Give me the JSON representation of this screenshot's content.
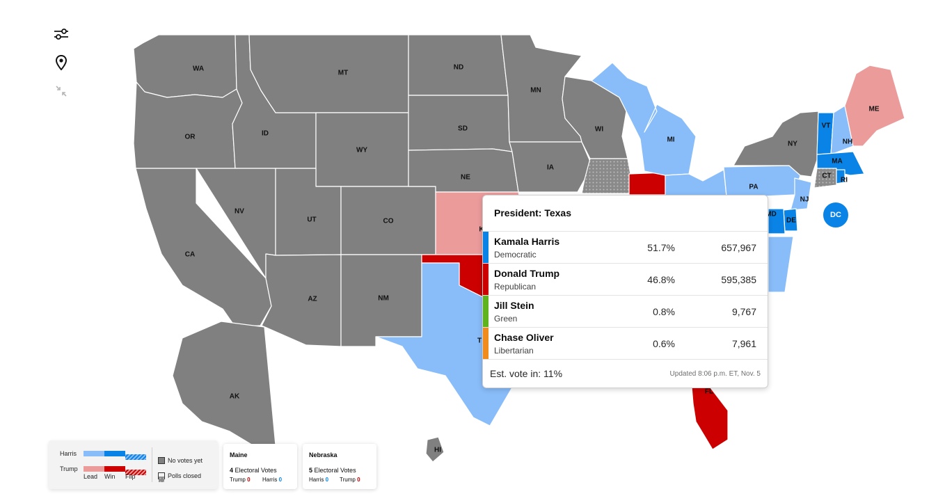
{
  "colors": {
    "no_votes": "#808080",
    "harris_lead": "#89bdf9",
    "harris_win": "#0a83e6",
    "trump_lead": "#ec9b9b",
    "trump_win": "#cc0000",
    "polls_closed": "#9a9a9a"
  },
  "controls": [
    {
      "name": "filter-sliders-icon"
    },
    {
      "name": "location-pin-icon"
    },
    {
      "name": "collapse-arrows-icon"
    }
  ],
  "map": {
    "states": [
      {
        "id": "WA",
        "label": "WA",
        "status": "no_votes"
      },
      {
        "id": "OR",
        "label": "OR",
        "status": "no_votes"
      },
      {
        "id": "CA",
        "label": "CA",
        "status": "no_votes"
      },
      {
        "id": "ID",
        "label": "ID",
        "status": "no_votes"
      },
      {
        "id": "NV",
        "label": "NV",
        "status": "no_votes"
      },
      {
        "id": "MT",
        "label": "MT",
        "status": "no_votes"
      },
      {
        "id": "WY",
        "label": "WY",
        "status": "no_votes"
      },
      {
        "id": "UT",
        "label": "UT",
        "status": "no_votes"
      },
      {
        "id": "AZ",
        "label": "AZ",
        "status": "no_votes"
      },
      {
        "id": "CO",
        "label": "CO",
        "status": "no_votes"
      },
      {
        "id": "NM",
        "label": "NM",
        "status": "no_votes"
      },
      {
        "id": "ND",
        "label": "ND",
        "status": "no_votes"
      },
      {
        "id": "SD",
        "label": "SD",
        "status": "no_votes"
      },
      {
        "id": "NE",
        "label": "NE",
        "status": "no_votes"
      },
      {
        "id": "KS",
        "label": "K",
        "status": "trump_lead"
      },
      {
        "id": "OK",
        "label": "",
        "status": "trump_win"
      },
      {
        "id": "TX",
        "label": "T",
        "status": "harris_lead"
      },
      {
        "id": "MN",
        "label": "MN",
        "status": "no_votes"
      },
      {
        "id": "IA",
        "label": "IA",
        "status": "no_votes"
      },
      {
        "id": "WI",
        "label": "WI",
        "status": "no_votes"
      },
      {
        "id": "IL",
        "label": "",
        "status": "polls_closed"
      },
      {
        "id": "IN",
        "label": "",
        "status": "trump_win"
      },
      {
        "id": "MI",
        "label": "MI",
        "status": "harris_lead"
      },
      {
        "id": "OH",
        "label": "",
        "status": "harris_lead"
      },
      {
        "id": "PA",
        "label": "PA",
        "status": "harris_lead"
      },
      {
        "id": "NY",
        "label": "NY",
        "status": "no_votes"
      },
      {
        "id": "VT",
        "label": "VT",
        "status": "harris_win"
      },
      {
        "id": "NH",
        "label": "NH",
        "status": "harris_lead"
      },
      {
        "id": "ME",
        "label": "ME",
        "status": "trump_lead"
      },
      {
        "id": "MA",
        "label": "MA",
        "status": "harris_win"
      },
      {
        "id": "CT",
        "label": "CT",
        "status": "polls_closed"
      },
      {
        "id": "RI",
        "label": "RI",
        "status": "harris_win"
      },
      {
        "id": "NJ",
        "label": "NJ",
        "status": "harris_lead"
      },
      {
        "id": "DE",
        "label": "DE",
        "status": "harris_win"
      },
      {
        "id": "MD",
        "label": "MD",
        "status": "harris_win"
      },
      {
        "id": "FL",
        "label": "FL",
        "status": "trump_win"
      },
      {
        "id": "AK",
        "label": "AK",
        "status": "no_votes"
      },
      {
        "id": "HI",
        "label": "HI",
        "status": "no_votes"
      }
    ],
    "dc_label": "DC"
  },
  "tooltip": {
    "title": "President: Texas",
    "candidates": [
      {
        "name": "Kamala Harris",
        "party": "Democratic",
        "pct": "51.7%",
        "votes": "657,967",
        "color": "#0a83e6"
      },
      {
        "name": "Donald Trump",
        "party": "Republican",
        "pct": "46.8%",
        "votes": "595,385",
        "color": "#cc0000"
      },
      {
        "name": "Jill Stein",
        "party": "Green",
        "pct": "0.8%",
        "votes": "9,767",
        "color": "#5fb41e"
      },
      {
        "name": "Chase Oliver",
        "party": "Libertarian",
        "pct": "0.6%",
        "votes": "7,961",
        "color": "#f08c1e"
      }
    ],
    "est_vote": "Est. vote in: 11%",
    "updated": "Updated 8:06 p.m. ET, Nov. 5"
  },
  "legend": {
    "harris_label": "Harris",
    "trump_label": "Trump",
    "lead_label": "Lead",
    "win_label": "Win",
    "flip_label": "Flip",
    "no_votes_label": "No votes yet",
    "polls_closed_label": "Polls closed"
  },
  "ev_cards": [
    {
      "state": "Maine",
      "ev_num": "4",
      "ev_text": "Electoral Votes",
      "first_name": "Trump",
      "first_val": "0",
      "second_name": "Harris",
      "second_val": "0"
    },
    {
      "state": "Nebraska",
      "ev_num": "5",
      "ev_text": "Electoral Votes",
      "first_name": "Harris",
      "first_val": "0",
      "second_name": "Trump",
      "second_val": "0"
    }
  ]
}
